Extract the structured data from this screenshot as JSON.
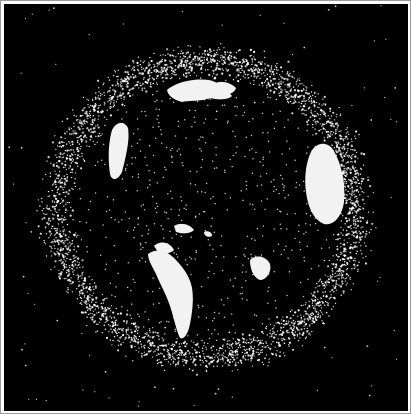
{
  "image": {
    "subject": "earth-orbital-debris-view",
    "colors": {
      "background": "#000000",
      "debris": "#ffffff",
      "landmass": "#f2f2f2",
      "frame": "#9a9a9a"
    }
  }
}
